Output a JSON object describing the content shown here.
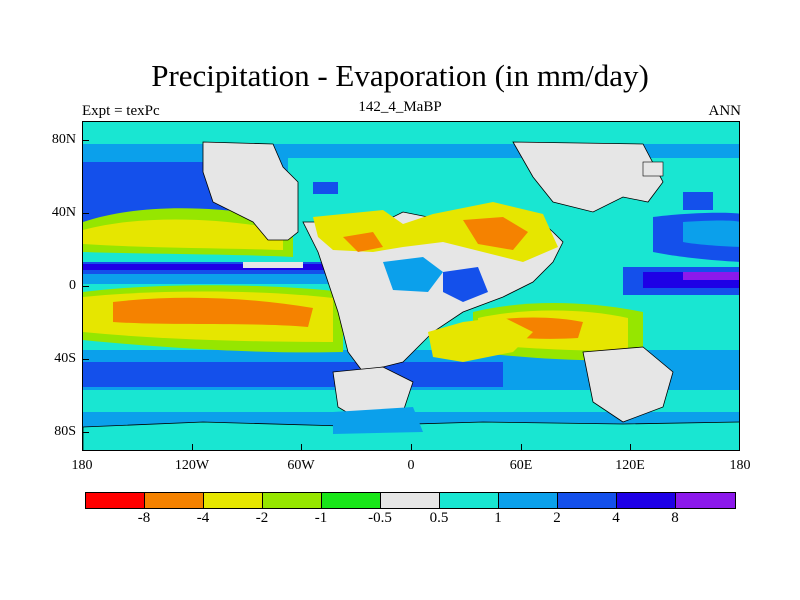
{
  "plot": {
    "title": "Precipitation - Evaporation (in mm/day)",
    "left_string": "Expt = texPc",
    "center_string": "142_4_MaBP",
    "right_string": "ANN"
  },
  "axes": {
    "lat_labels": [
      "80N",
      "40N",
      "0",
      "40S",
      "80S"
    ],
    "lon_labels": [
      "180",
      "120W",
      "60W",
      "0",
      "60E",
      "120E",
      "180"
    ]
  },
  "colorbar": {
    "labels": [
      "-8",
      "-4",
      "-2",
      "-1",
      "-0.5",
      "0.5",
      "1",
      "2",
      "4",
      "8"
    ],
    "colors": [
      "#ff0000",
      "#f58200",
      "#e6e600",
      "#96e600",
      "#19e619",
      "#e6e6e6",
      "#19e6d2",
      "#0ba0eb",
      "#1450eb",
      "#1e00e6",
      "#8c19eb"
    ]
  },
  "palette": {
    "very_dry": "#ff0000",
    "dry_orange": "#f58200",
    "yellow": "#e6e600",
    "lime": "#96e600",
    "green": "#19e619",
    "neutral_gray": "#e6e6e6",
    "cyan": "#19e6d2",
    "light_blue": "#0ba0eb",
    "blue": "#1450eb",
    "dark_blue": "#1e00e6",
    "purple": "#8c19eb"
  }
}
